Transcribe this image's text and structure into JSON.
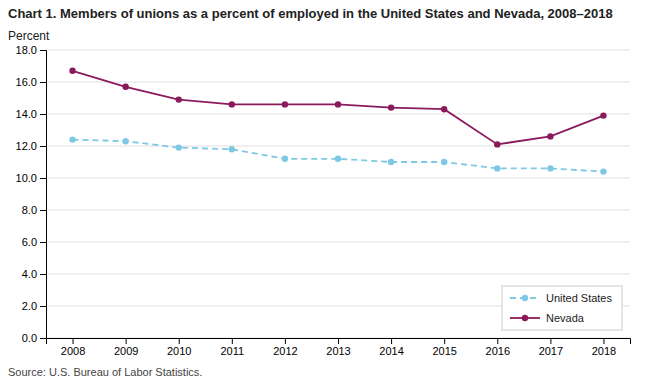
{
  "chart_data": {
    "type": "line",
    "title": "Chart 1. Members of unions as a percent of employed in the United States and Nevada, 2008–2018",
    "y_label": "Percent",
    "source": "Source: U.S. Bureau of Labor Statistics.",
    "x": [
      2008,
      2009,
      2010,
      2011,
      2012,
      2013,
      2014,
      2015,
      2016,
      2017,
      2018
    ],
    "series": [
      {
        "name": "United States",
        "color": "#7ec8e3",
        "marker": "circle",
        "line_style": "dashed",
        "values": [
          12.4,
          12.3,
          11.9,
          11.8,
          11.2,
          11.2,
          11.0,
          11.0,
          10.6,
          10.6,
          10.4
        ]
      },
      {
        "name": "Nevada",
        "color": "#8b1a5c",
        "marker": "circle",
        "line_style": "solid",
        "values": [
          16.7,
          15.7,
          14.9,
          14.6,
          14.6,
          14.6,
          14.4,
          14.3,
          12.1,
          12.6,
          13.9
        ]
      }
    ],
    "xlim": [
      2007.5,
      2018.5
    ],
    "xticks": [
      2008,
      2009,
      2010,
      2011,
      2012,
      2013,
      2014,
      2015,
      2016,
      2017,
      2018
    ],
    "ylim": [
      0,
      18
    ],
    "yticks": [
      {
        "value": 0,
        "label": "0.0"
      },
      {
        "value": 2,
        "label": "2.0"
      },
      {
        "value": 4,
        "label": "4.0"
      },
      {
        "value": 6,
        "label": "6.0"
      },
      {
        "value": 8,
        "label": "8.0"
      },
      {
        "value": 10,
        "label": "10.0"
      },
      {
        "value": 12,
        "label": "12.0"
      },
      {
        "value": 14,
        "label": "14.0"
      },
      {
        "value": 16,
        "label": "16.0"
      },
      {
        "value": 18,
        "label": "18.0"
      }
    ],
    "grid": true,
    "legend": "lower right"
  }
}
